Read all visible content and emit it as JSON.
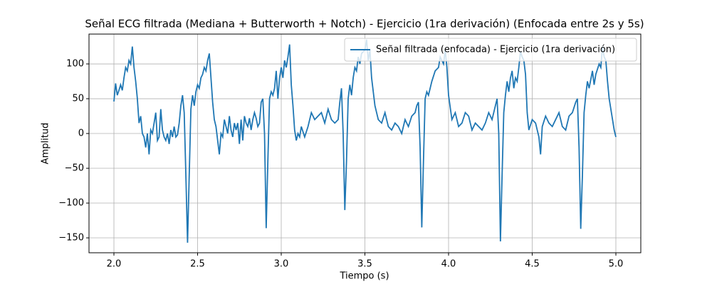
{
  "chart_data": {
    "type": "line",
    "title": "Señal ECG filtrada (Mediana + Butterworth + Notch) - Ejercicio (1ra derivación) (Enfocada entre 2s y 5s)",
    "x_label": "Tiempo (s)",
    "y_label": "Amplitud",
    "xlim": [
      1.851,
      5.149
    ],
    "ylim": [
      -171.4,
      142.9
    ],
    "xticks": [
      {
        "value": 2.0,
        "label": "2.0"
      },
      {
        "value": 2.5,
        "label": "2.5"
      },
      {
        "value": 3.0,
        "label": "3.0"
      },
      {
        "value": 3.5,
        "label": "3.5"
      },
      {
        "value": 4.0,
        "label": "4.0"
      },
      {
        "value": 4.5,
        "label": "4.5"
      },
      {
        "value": 5.0,
        "label": "5.0"
      }
    ],
    "yticks": [
      {
        "value": -150,
        "label": "−150"
      },
      {
        "value": -100,
        "label": "−100"
      },
      {
        "value": -50,
        "label": "−50"
      },
      0,
      50,
      100
    ],
    "grid": true,
    "legend": "upper right",
    "x": [
      2.0,
      2.01,
      2.02,
      2.03,
      2.04,
      2.05,
      2.06,
      2.07,
      2.08,
      2.09,
      2.1,
      2.11,
      2.12,
      2.13,
      2.14,
      2.15,
      2.16,
      2.17,
      2.18,
      2.19,
      2.2,
      2.21,
      2.22,
      2.23,
      2.24,
      2.25,
      2.26,
      2.27,
      2.28,
      2.29,
      2.3,
      2.31,
      2.32,
      2.33,
      2.34,
      2.35,
      2.36,
      2.37,
      2.38,
      2.39,
      2.4,
      2.41,
      2.42,
      2.43,
      2.44,
      2.45,
      2.46,
      2.47,
      2.48,
      2.49,
      2.5,
      2.51,
      2.52,
      2.53,
      2.54,
      2.55,
      2.56,
      2.57,
      2.58,
      2.59,
      2.6,
      2.61,
      2.62,
      2.63,
      2.64,
      2.65,
      2.66,
      2.67,
      2.68,
      2.69,
      2.7,
      2.71,
      2.72,
      2.73,
      2.74,
      2.75,
      2.76,
      2.77,
      2.78,
      2.79,
      2.8,
      2.81,
      2.82,
      2.83,
      2.84,
      2.85,
      2.86,
      2.87,
      2.88,
      2.89,
      2.9,
      2.91,
      2.92,
      2.93,
      2.94,
      2.95,
      2.96,
      2.97,
      2.98,
      2.99,
      3.0,
      3.01,
      3.02,
      3.03,
      3.04,
      3.05,
      3.06,
      3.07,
      3.08,
      3.09,
      3.1,
      3.11,
      3.12,
      3.14,
      3.16,
      3.18,
      3.2,
      3.22,
      3.24,
      3.26,
      3.28,
      3.3,
      3.32,
      3.34,
      3.35,
      3.36,
      3.37,
      3.38,
      3.39,
      3.4,
      3.41,
      3.42,
      3.43,
      3.44,
      3.45,
      3.46,
      3.47,
      3.48,
      3.5,
      3.51,
      3.52,
      3.53,
      3.54,
      3.56,
      3.58,
      3.6,
      3.62,
      3.64,
      3.66,
      3.68,
      3.7,
      3.72,
      3.74,
      3.76,
      3.78,
      3.8,
      3.81,
      3.82,
      3.83,
      3.84,
      3.85,
      3.86,
      3.87,
      3.88,
      3.9,
      3.92,
      3.94,
      3.95,
      3.96,
      3.97,
      3.98,
      3.99,
      4.0,
      4.02,
      4.04,
      4.06,
      4.08,
      4.1,
      4.12,
      4.14,
      4.16,
      4.18,
      4.2,
      4.22,
      4.24,
      4.26,
      4.28,
      4.29,
      4.3,
      4.31,
      4.32,
      4.33,
      4.34,
      4.35,
      4.36,
      4.37,
      4.38,
      4.39,
      4.4,
      4.41,
      4.42,
      4.43,
      4.44,
      4.45,
      4.46,
      4.47,
      4.48,
      4.5,
      4.52,
      4.54,
      4.55,
      4.56,
      4.58,
      4.6,
      4.62,
      4.64,
      4.66,
      4.68,
      4.7,
      4.72,
      4.74,
      4.76,
      4.77,
      4.78,
      4.79,
      4.8,
      4.81,
      4.82,
      4.83,
      4.84,
      4.86,
      4.87,
      4.88,
      4.9,
      4.91,
      4.92,
      4.93,
      4.94,
      4.95,
      4.96,
      4.98,
      4.99,
      5.0
    ],
    "series": [
      {
        "name": "Señal filtrada (enfocada) - Ejercicio (1ra derivación)",
        "color": "#1f77b4",
        "values": [
          46,
          72,
          55,
          62,
          70,
          62,
          80,
          95,
          90,
          105,
          100,
          125,
          95,
          75,
          50,
          15,
          25,
          0,
          -5,
          -20,
          0,
          -30,
          5,
          0,
          15,
          30,
          -10,
          -5,
          35,
          5,
          -5,
          -10,
          0,
          -15,
          5,
          -5,
          10,
          -5,
          -2,
          15,
          40,
          55,
          30,
          -60,
          -157,
          -60,
          35,
          55,
          40,
          60,
          70,
          65,
          80,
          85,
          95,
          90,
          105,
          115,
          80,
          45,
          20,
          10,
          -10,
          -30,
          0,
          -5,
          20,
          10,
          0,
          25,
          5,
          -5,
          15,
          5,
          15,
          -15,
          20,
          -10,
          25,
          15,
          10,
          22,
          5,
          20,
          30,
          22,
          10,
          15,
          45,
          50,
          0,
          -136,
          -40,
          50,
          60,
          55,
          65,
          90,
          50,
          80,
          95,
          80,
          105,
          95,
          110,
          128,
          70,
          40,
          5,
          -10,
          0,
          -5,
          10,
          -5,
          10,
          30,
          20,
          25,
          30,
          15,
          35,
          20,
          15,
          20,
          45,
          65,
          0,
          -110,
          -40,
          50,
          70,
          55,
          80,
          95,
          90,
          110,
          100,
          115,
          120,
          135,
          105,
          120,
          80,
          40,
          20,
          15,
          30,
          10,
          5,
          15,
          10,
          0,
          20,
          10,
          25,
          30,
          40,
          45,
          -20,
          -135,
          -40,
          50,
          60,
          55,
          75,
          90,
          95,
          110,
          105,
          100,
          120,
          95,
          55,
          20,
          30,
          10,
          15,
          30,
          25,
          5,
          15,
          10,
          5,
          15,
          30,
          20,
          40,
          50,
          0,
          -155,
          -60,
          30,
          55,
          75,
          60,
          80,
          90,
          65,
          80,
          75,
          95,
          118,
          110,
          105,
          85,
          30,
          5,
          20,
          15,
          -5,
          -30,
          10,
          25,
          15,
          10,
          20,
          30,
          10,
          5,
          25,
          30,
          45,
          50,
          -20,
          -137,
          -60,
          30,
          55,
          75,
          65,
          90,
          70,
          85,
          100,
          95,
          125,
          110,
          105,
          75,
          50,
          20,
          5,
          -5
        ]
      }
    ]
  }
}
